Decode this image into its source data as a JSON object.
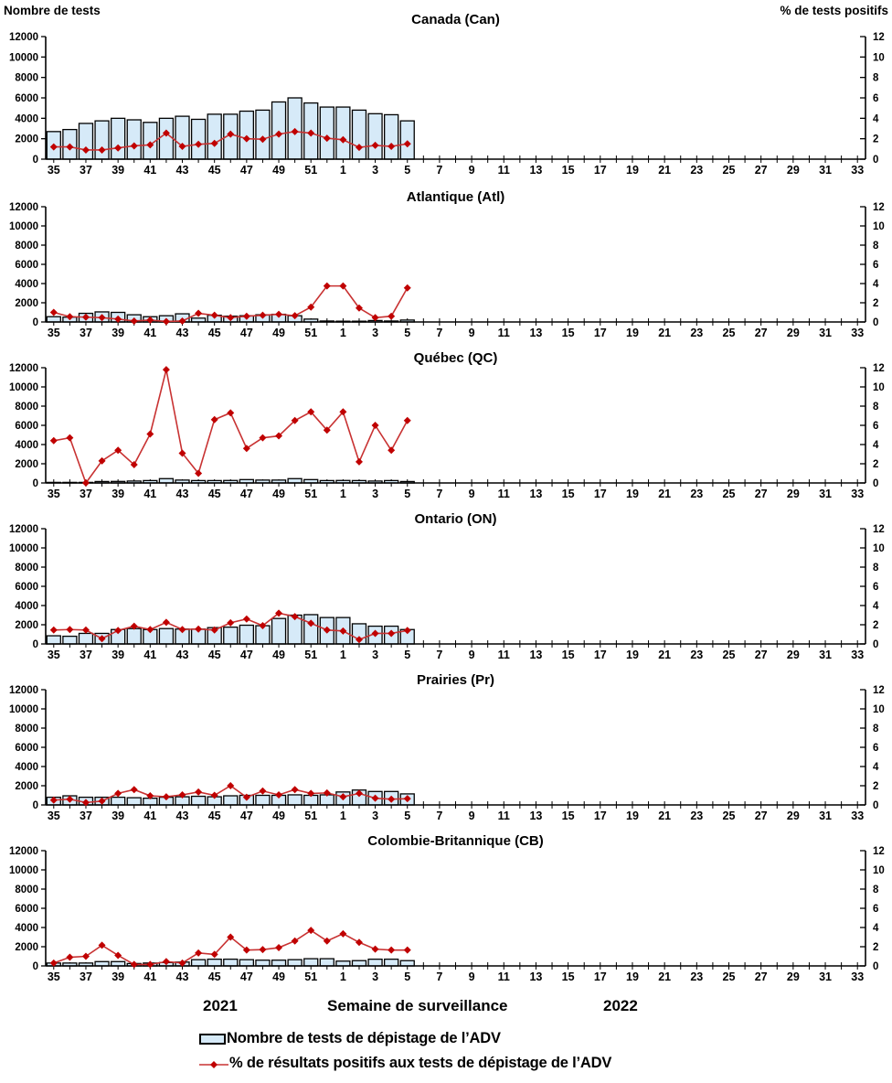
{
  "headers": {
    "left": "Nombre de tests",
    "right": "% de tests positifs"
  },
  "colors": {
    "bar_fill": "#D6EAF8",
    "bar_stroke": "#000000",
    "line": "#C83232",
    "marker": "#C00000",
    "axis": "#000000",
    "text": "#000000"
  },
  "chart_data": {
    "type": "bar+line dual-axis, 6 stacked panels",
    "x_axis": {
      "ranges": [
        [
          35,
          52
        ],
        [
          1,
          33
        ]
      ],
      "title": "Semaine de surveillance",
      "year_left": "2021",
      "year_right": "2022",
      "tick_labels_on": "odd weeks"
    },
    "y_left": {
      "label": "Nombre de tests",
      "min": 0,
      "max": 12000,
      "step": 2000
    },
    "y_right": {
      "label": "% de tests positifs",
      "min": 0,
      "max": 12,
      "step": 2
    },
    "data_weeks": [
      35,
      36,
      37,
      38,
      39,
      40,
      41,
      42,
      43,
      44,
      45,
      46,
      47,
      48,
      49,
      50,
      51,
      52,
      1,
      2,
      3,
      4,
      5
    ],
    "panels": [
      {
        "title": "Canada (Can)",
        "code": "can",
        "tests": [
          2700,
          2900,
          3500,
          3750,
          4000,
          3850,
          3600,
          4000,
          4200,
          3900,
          4400,
          4400,
          4700,
          4800,
          5600,
          6000,
          5500,
          5100,
          5100,
          4800,
          4450,
          4350,
          3750
        ],
        "pct_positive": [
          1.2,
          1.2,
          0.9,
          0.9,
          1.1,
          1.3,
          1.4,
          2.55,
          1.25,
          1.45,
          1.55,
          2.45,
          2.0,
          1.95,
          2.45,
          2.7,
          2.55,
          2.05,
          1.9,
          1.15,
          1.35,
          1.25,
          1.5
        ]
      },
      {
        "title": "Atlantique (Atl)",
        "code": "atl",
        "tests": [
          550,
          500,
          900,
          1050,
          1000,
          750,
          550,
          650,
          850,
          400,
          700,
          600,
          650,
          750,
          800,
          650,
          300,
          100,
          80,
          80,
          150,
          100,
          200
        ],
        "pct_positive": [
          1.0,
          0.55,
          0.5,
          0.45,
          0.3,
          0.1,
          0.2,
          0.05,
          0.1,
          0.9,
          0.7,
          0.45,
          0.6,
          0.7,
          0.8,
          0.65,
          1.55,
          3.75,
          3.75,
          1.45,
          0.45,
          0.6,
          3.55
        ]
      },
      {
        "title": "Québec (QC)",
        "code": "qc",
        "tests": [
          60,
          60,
          60,
          150,
          160,
          200,
          250,
          450,
          300,
          250,
          250,
          260,
          350,
          300,
          300,
          450,
          350,
          250,
          260,
          250,
          200,
          250,
          150
        ],
        "pct_positive": [
          4.4,
          4.7,
          0.0,
          2.3,
          3.4,
          1.9,
          5.1,
          11.8,
          3.1,
          1.0,
          6.6,
          7.3,
          3.6,
          4.7,
          4.9,
          6.5,
          7.4,
          5.5,
          7.4,
          2.2,
          6.0,
          3.4,
          6.5
        ]
      },
      {
        "title": "Ontario (ON)",
        "code": "on",
        "tests": [
          850,
          800,
          1100,
          1100,
          1500,
          1600,
          1500,
          1600,
          1550,
          1550,
          1700,
          1750,
          1950,
          1900,
          2650,
          3000,
          3050,
          2750,
          2750,
          2100,
          1850,
          1850,
          1500
        ],
        "pct_positive": [
          1.45,
          1.5,
          1.45,
          0.55,
          1.4,
          1.85,
          1.5,
          2.25,
          1.5,
          1.55,
          1.45,
          2.2,
          2.6,
          1.9,
          3.2,
          2.85,
          2.15,
          1.45,
          1.35,
          0.45,
          1.1,
          1.1,
          1.4
        ]
      },
      {
        "title": "Prairies (Pr)",
        "code": "pr",
        "tests": [
          800,
          950,
          800,
          800,
          800,
          750,
          700,
          800,
          850,
          900,
          850,
          950,
          1000,
          1000,
          1000,
          1050,
          1000,
          1050,
          1350,
          1550,
          1400,
          1400,
          1150
        ],
        "pct_positive": [
          0.5,
          0.6,
          0.25,
          0.4,
          1.2,
          1.6,
          0.95,
          0.85,
          1.05,
          1.35,
          1.0,
          2.0,
          0.8,
          1.45,
          1.05,
          1.6,
          1.2,
          1.25,
          0.85,
          1.2,
          0.7,
          0.6,
          0.65
        ]
      },
      {
        "title": "Colombie-Britannique (CB)",
        "code": "cb",
        "tests": [
          300,
          300,
          300,
          450,
          450,
          250,
          300,
          350,
          400,
          650,
          700,
          700,
          650,
          600,
          600,
          650,
          750,
          750,
          500,
          550,
          700,
          700,
          550
        ],
        "pct_positive": [
          0.3,
          0.9,
          1.0,
          2.15,
          1.1,
          0.15,
          0.15,
          0.45,
          0.3,
          1.35,
          1.2,
          3.0,
          1.65,
          1.7,
          1.9,
          2.6,
          3.7,
          2.6,
          3.35,
          2.45,
          1.75,
          1.65,
          1.65
        ]
      }
    ]
  },
  "footer": {
    "year_left": "2021",
    "year_right": "2022",
    "x_axis_title": "Semaine de surveillance",
    "legend_tests": "Nombre de tests de dépistage de l’ADV",
    "legend_pct": "% de résultats positifs aux tests de dépistage de l’ADV"
  }
}
